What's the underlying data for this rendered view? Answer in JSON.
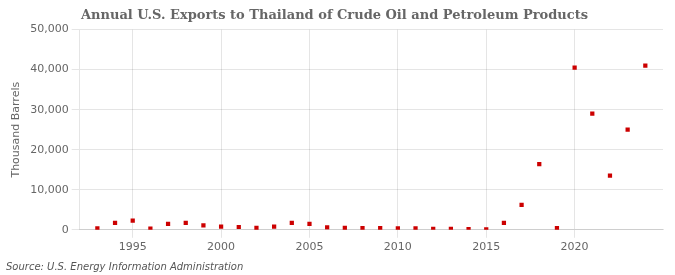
{
  "chart_data": {
    "type": "scatter",
    "title": "Annual U.S. Exports to Thailand of Crude Oil and Petroleum Products",
    "y_label": "Thousand Barrels",
    "annotations": [
      "Source: U.S. Energy Information Administration"
    ],
    "x": [
      1993,
      1994,
      1995,
      1996,
      1997,
      1998,
      1999,
      2000,
      2001,
      2002,
      2003,
      2004,
      2005,
      2006,
      2007,
      2008,
      2009,
      2010,
      2011,
      2012,
      2013,
      2014,
      2015,
      2016,
      2017,
      2018,
      2019,
      2020,
      2021,
      2022,
      2023,
      2024
    ],
    "values": [
      350,
      1700,
      2300,
      300,
      1500,
      1700,
      1100,
      800,
      700,
      500,
      800,
      1700,
      1500,
      600,
      500,
      400,
      400,
      350,
      350,
      250,
      250,
      150,
      100,
      1700,
      6200,
      16400,
      400,
      40500,
      29000,
      13500,
      25000,
      41000
    ],
    "color": "#cc0000",
    "marker": "square",
    "xlim": [
      1992,
      2025
    ],
    "xticks": [
      1995,
      2000,
      2005,
      2010,
      2015,
      2020
    ],
    "ylim": [
      0,
      50000
    ],
    "yticks": [
      0,
      {
        "value": 10000,
        "label": "10,000"
      },
      {
        "value": 20000,
        "label": "20,000"
      },
      {
        "value": 30000,
        "label": "30,000"
      },
      {
        "value": 40000,
        "label": "40,000"
      },
      {
        "value": 50000,
        "label": "50,000"
      }
    ],
    "grid": true
  }
}
